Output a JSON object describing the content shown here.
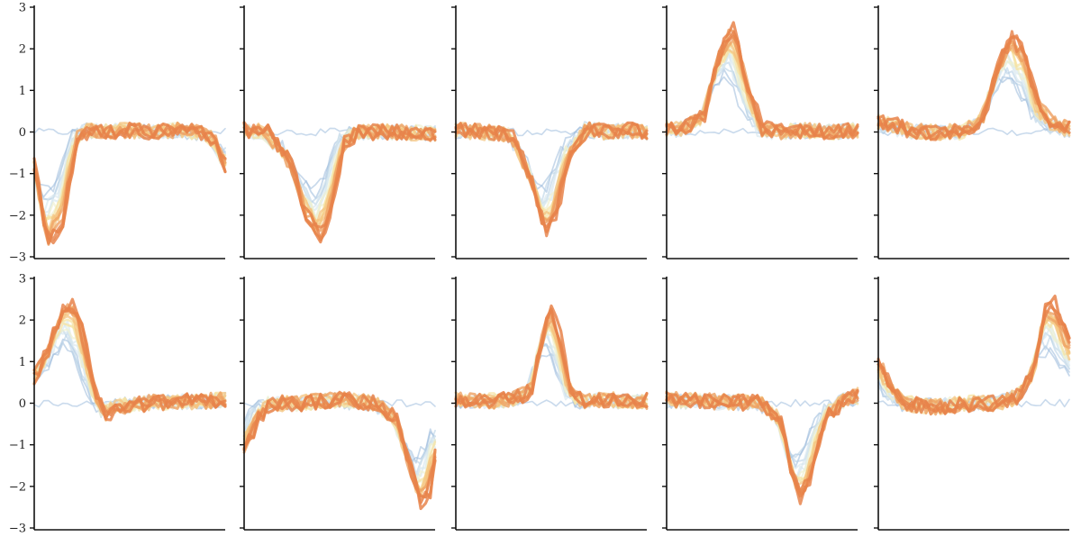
{
  "chart_data": {
    "type": "line",
    "title": "",
    "xlabel": "",
    "ylabel": "",
    "grid": false,
    "layout": {
      "rows": 2,
      "cols": 5
    },
    "ylim": [
      -3,
      3
    ],
    "xlim": [
      0,
      40
    ],
    "yticks": [
      3,
      2,
      1,
      0,
      -1,
      -2,
      -3
    ],
    "ytick_labels": [
      "3",
      "2",
      "1",
      "0",
      "−1",
      "−2",
      "−3"
    ],
    "n_traces": 20,
    "color_ramp": [
      "#9dbbdc",
      "#b9d2e6",
      "#d6e6ee",
      "#eef0d0",
      "#f6e2a0",
      "#f4c47f",
      "#eea162",
      "#e7834a"
    ],
    "trace_note": "Each panel overlays 20 sampled traces (blue earliest → orange latest); first trace is near-flat baseline, later traces converge on the template waveform.",
    "panels": [
      {
        "id": "r1c1",
        "template": {
          "x": [
            0,
            3,
            6,
            9,
            12,
            16,
            20,
            25,
            30,
            35,
            38,
            40
          ],
          "y": [
            -0.7,
            -2.7,
            -2.2,
            -0.2,
            0.05,
            0.0,
            0.05,
            0.0,
            0.05,
            0.0,
            -0.2,
            -0.8
          ]
        }
      },
      {
        "id": "r1c2",
        "template": {
          "x": [
            0,
            5,
            10,
            13,
            16,
            18,
            21,
            24,
            28,
            34,
            40
          ],
          "y": [
            0.05,
            0.0,
            -0.8,
            -2.0,
            -2.6,
            -2.0,
            -0.3,
            0.0,
            0.0,
            0.0,
            -0.05
          ]
        }
      },
      {
        "id": "r1c3",
        "template": {
          "x": [
            0,
            6,
            12,
            16,
            19,
            21,
            24,
            28,
            32,
            36,
            40
          ],
          "y": [
            0.05,
            0.0,
            -0.1,
            -1.2,
            -2.5,
            -2.0,
            -0.6,
            0.1,
            0.0,
            0.05,
            0.0
          ]
        }
      },
      {
        "id": "r1c4",
        "template": {
          "x": [
            0,
            4,
            8,
            11,
            14,
            17,
            20,
            24,
            30,
            36,
            40
          ],
          "y": [
            0.1,
            0.1,
            0.4,
            1.8,
            2.6,
            1.2,
            0.1,
            0.0,
            0.05,
            0.0,
            0.05
          ]
        }
      },
      {
        "id": "r1c5",
        "template": {
          "x": [
            0,
            8,
            18,
            22,
            25,
            28,
            31,
            34,
            37,
            40
          ],
          "y": [
            0.3,
            0.0,
            0.0,
            0.3,
            1.5,
            2.4,
            1.8,
            0.6,
            0.2,
            0.1
          ]
        }
      },
      {
        "id": "r2c1",
        "template": {
          "x": [
            0,
            3,
            6,
            8,
            10,
            13,
            15,
            18,
            24,
            30,
            36,
            40
          ],
          "y": [
            0.6,
            1.3,
            2.3,
            2.5,
            1.8,
            0.3,
            -0.3,
            -0.1,
            0.0,
            0.05,
            0.05,
            0.1
          ]
        }
      },
      {
        "id": "r2c2",
        "template": {
          "x": [
            0,
            3,
            6,
            12,
            20,
            28,
            32,
            35,
            37,
            39,
            40
          ],
          "y": [
            -1.2,
            -0.4,
            0.0,
            0.0,
            0.1,
            0.0,
            -0.4,
            -1.6,
            -2.5,
            -2.1,
            -1.3
          ]
        }
      },
      {
        "id": "r2c3",
        "template": {
          "x": [
            0,
            6,
            12,
            16,
            18,
            20,
            22,
            24,
            27,
            32,
            40
          ],
          "y": [
            0.1,
            0.05,
            0.1,
            0.3,
            1.5,
            2.4,
            1.6,
            0.4,
            0.05,
            0.1,
            0.05
          ]
        }
      },
      {
        "id": "r2c4",
        "template": {
          "x": [
            0,
            10,
            20,
            24,
            26,
            28,
            30,
            32,
            34,
            37,
            40
          ],
          "y": [
            0.1,
            0.05,
            0.0,
            -0.4,
            -1.5,
            -2.4,
            -1.9,
            -1.0,
            -0.3,
            0.0,
            0.2
          ]
        }
      },
      {
        "id": "r2c5",
        "template": {
          "x": [
            0,
            3,
            6,
            12,
            20,
            26,
            30,
            33,
            35,
            37,
            39,
            40
          ],
          "y": [
            1.1,
            0.4,
            0.0,
            -0.1,
            0.0,
            0.0,
            0.2,
            0.9,
            2.2,
            2.4,
            1.8,
            1.4
          ]
        }
      }
    ]
  }
}
